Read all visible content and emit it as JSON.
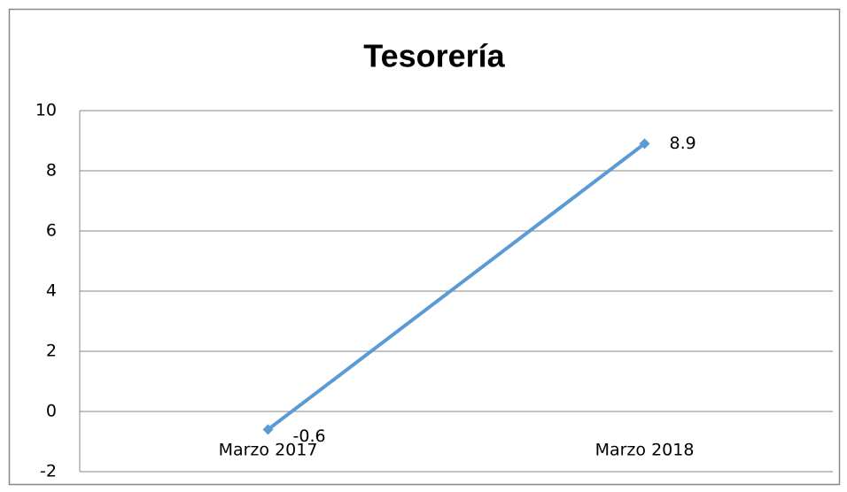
{
  "chart_data": {
    "type": "line",
    "title": "Tesorería",
    "categories": [
      "Marzo 2017",
      "Marzo 2018"
    ],
    "series": [
      {
        "name": "Tesorería",
        "color": "#5b9bd5",
        "values": [
          -0.6,
          8.9
        ]
      }
    ],
    "ylim": [
      -2,
      10
    ],
    "yticks": [
      -2,
      0,
      2,
      4,
      6,
      8,
      10
    ],
    "grid": true,
    "data_labels": true
  }
}
